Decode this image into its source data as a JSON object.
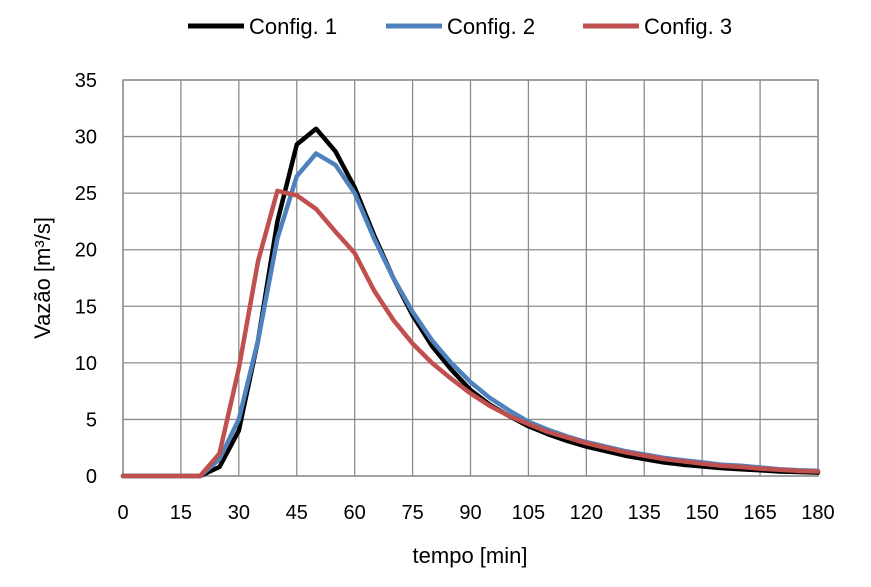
{
  "chart_data": {
    "type": "line",
    "xlabel": "tempo [min]",
    "ylabel": "Vazão [m³/s]",
    "xlim": [
      0,
      180
    ],
    "ylim": [
      0,
      35
    ],
    "x_ticks": [
      0,
      15,
      30,
      45,
      60,
      75,
      90,
      105,
      120,
      135,
      150,
      165,
      180
    ],
    "y_ticks": [
      0,
      5,
      10,
      15,
      20,
      25,
      30,
      35
    ],
    "grid": true,
    "legend_position": "top",
    "series": [
      {
        "name": "Config. 1",
        "color": "#000000",
        "x": [
          0,
          5,
          10,
          15,
          20,
          25,
          30,
          35,
          40,
          45,
          50,
          55,
          60,
          65,
          70,
          75,
          80,
          85,
          90,
          95,
          100,
          105,
          110,
          115,
          120,
          125,
          130,
          135,
          140,
          145,
          150,
          155,
          160,
          165,
          170,
          175,
          180
        ],
        "y": [
          0,
          0,
          0,
          0,
          0,
          0.8,
          4.0,
          12.0,
          22.5,
          29.3,
          30.7,
          28.7,
          25.5,
          21.3,
          17.5,
          14.2,
          11.5,
          9.4,
          7.6,
          6.3,
          5.3,
          4.4,
          3.7,
          3.1,
          2.6,
          2.2,
          1.8,
          1.5,
          1.2,
          1.0,
          0.85,
          0.7,
          0.6,
          0.5,
          0.4,
          0.35,
          0.3
        ]
      },
      {
        "name": "Config. 2",
        "color": "#4f81bd",
        "x": [
          0,
          5,
          10,
          15,
          20,
          25,
          30,
          35,
          40,
          45,
          50,
          55,
          60,
          65,
          70,
          75,
          80,
          85,
          90,
          95,
          100,
          105,
          110,
          115,
          120,
          125,
          130,
          135,
          140,
          145,
          150,
          155,
          160,
          165,
          170,
          175,
          180
        ],
        "y": [
          0,
          0,
          0,
          0,
          0,
          1.5,
          5.0,
          12.0,
          21.0,
          26.5,
          28.5,
          27.5,
          25.0,
          21.0,
          17.5,
          14.5,
          12.0,
          10.0,
          8.3,
          6.9,
          5.8,
          4.8,
          4.1,
          3.5,
          3.0,
          2.6,
          2.2,
          1.9,
          1.6,
          1.4,
          1.2,
          1.0,
          0.9,
          0.75,
          0.6,
          0.5,
          0.45
        ]
      },
      {
        "name": "Config. 3",
        "color": "#c0504d",
        "x": [
          0,
          5,
          10,
          15,
          20,
          25,
          30,
          35,
          40,
          45,
          50,
          55,
          60,
          65,
          70,
          75,
          80,
          85,
          90,
          95,
          100,
          105,
          110,
          115,
          120,
          125,
          130,
          135,
          140,
          145,
          150,
          155,
          160,
          165,
          170,
          175,
          180
        ],
        "y": [
          0,
          0,
          0,
          0,
          0,
          2.0,
          9.5,
          19.0,
          25.2,
          24.8,
          23.6,
          21.6,
          19.7,
          16.4,
          13.8,
          11.7,
          10.0,
          8.6,
          7.3,
          6.2,
          5.3,
          4.6,
          3.9,
          3.4,
          2.9,
          2.5,
          2.1,
          1.8,
          1.5,
          1.3,
          1.1,
          0.9,
          0.8,
          0.65,
          0.55,
          0.45,
          0.4
        ]
      }
    ]
  }
}
